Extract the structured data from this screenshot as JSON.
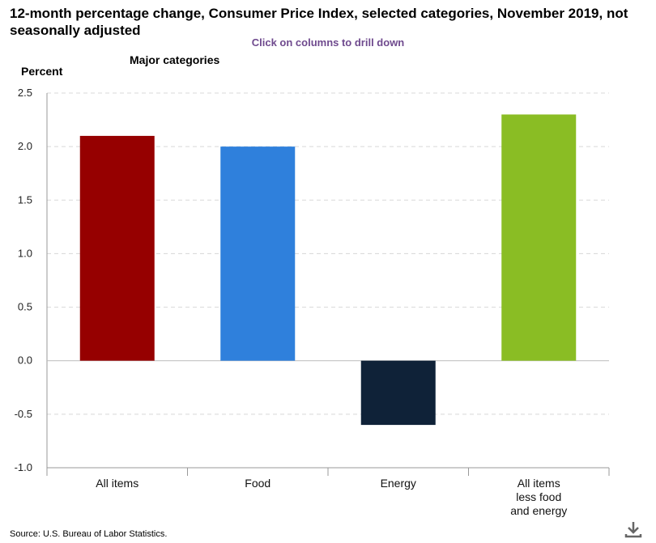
{
  "page": {
    "title": "12-month percentage change, Consumer Price Index, selected categories, November 2019, not seasonally adjusted",
    "drilldown_hint": "Click on columns to drill down",
    "source": "Source: U.S. Bureau of Labor Statistics.",
    "download_icon": "download-icon"
  },
  "chart_data": {
    "type": "bar",
    "title": "Major categories",
    "ylabel": "Percent",
    "xlabel": "",
    "ylim": [
      -1.0,
      2.5
    ],
    "yticks": [
      "2.5",
      "2.0",
      "1.5",
      "1.0",
      "0.5",
      "0.0",
      "-0.5",
      "-1.0"
    ],
    "ytick_values": [
      2.5,
      2.0,
      1.5,
      1.0,
      0.5,
      0.0,
      -0.5,
      -1.0
    ],
    "grid": true,
    "categories": [
      [
        "All items"
      ],
      [
        "Food"
      ],
      [
        "Energy"
      ],
      [
        "All items",
        "less food",
        "and energy"
      ]
    ],
    "values": [
      2.1,
      2.0,
      -0.6,
      2.3
    ],
    "colors": [
      "#960000",
      "#2f80dc",
      "#0f2238",
      "#8abd24"
    ]
  }
}
